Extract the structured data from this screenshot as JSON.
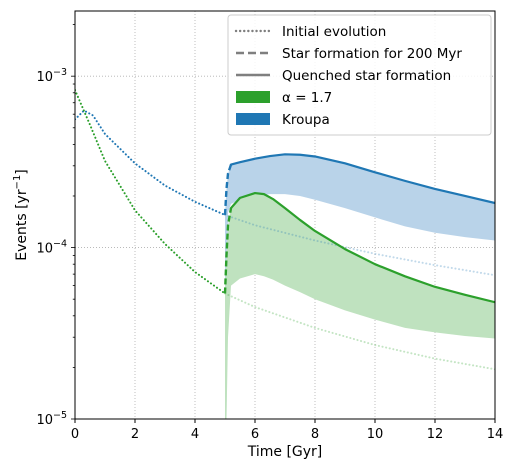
{
  "chart_data": {
    "type": "line",
    "title": "",
    "xlabel": "Time [Gyr]",
    "ylabel": "Events [yr",
    "ylabel_sup": "−1",
    "ylabel_end": "]",
    "xlim": [
      0,
      14
    ],
    "ylim": [
      1e-05,
      0.0024
    ],
    "yscale": "log",
    "grid": true,
    "x_ticks": [
      0,
      2,
      4,
      6,
      8,
      10,
      12,
      14
    ],
    "x_tick_labels": [
      "0",
      "2",
      "4",
      "6",
      "8",
      "10",
      "12",
      "14"
    ],
    "y_ticks": [
      1e-05,
      0.0001,
      0.001
    ],
    "y_tick_labels": [
      {
        "base": "10",
        "exp": "−5"
      },
      {
        "base": "10",
        "exp": "−4"
      },
      {
        "base": "10",
        "exp": "−3"
      }
    ],
    "legend_position": "top-right",
    "legend": [
      {
        "label": "Initial evolution",
        "style": "dotted",
        "color": "#7f7f7f"
      },
      {
        "label": "Star formation for 200 Myr",
        "style": "dashed",
        "color": "#7f7f7f"
      },
      {
        "label": "Quenched star formation",
        "style": "solid",
        "color": "#7f7f7f"
      },
      {
        "label": "α = 1.7",
        "style": "patch",
        "color": "#2ca02c"
      },
      {
        "label": "Kroupa",
        "style": "patch",
        "color": "#1f77b4"
      }
    ],
    "colors": {
      "blue": "#1f77b4",
      "green": "#2ca02c",
      "blue_fill": "#b9d3e9",
      "green_fill": "#bfe2bf"
    },
    "series": [
      {
        "model": "Kroupa",
        "style": "dotted",
        "stage": "initial",
        "x": [
          0,
          0.3,
          0.6,
          1,
          2,
          3,
          4,
          5
        ],
        "y": [
          0.00056,
          0.00063,
          0.00059,
          0.00046,
          0.00031,
          0.00023,
          0.000185,
          0.000155
        ]
      },
      {
        "model": "α = 1.7",
        "style": "dotted",
        "stage": "initial",
        "x": [
          0,
          0.5,
          1,
          2,
          3,
          4,
          5
        ],
        "y": [
          0.00083,
          0.00052,
          0.00032,
          0.000165,
          0.000105,
          7.2e-05,
          5.4e-05
        ]
      },
      {
        "model": "Kroupa",
        "style": "dotted-faint",
        "stage": "initial-continued",
        "x": [
          5,
          6,
          8,
          10,
          12,
          14
        ],
        "y": [
          0.000155,
          0.000135,
          0.00011,
          9.2e-05,
          7.9e-05,
          6.9e-05
        ]
      },
      {
        "model": "α = 1.7",
        "style": "dotted-faint",
        "stage": "initial-continued",
        "x": [
          5,
          6,
          8,
          10,
          12,
          14
        ],
        "y": [
          5.4e-05,
          4.5e-05,
          3.4e-05,
          2.7e-05,
          2.25e-05,
          1.95e-05
        ]
      },
      {
        "model": "Kroupa",
        "style": "dashed",
        "stage": "star-formation",
        "x": [
          5,
          5.05,
          5.1,
          5.2
        ],
        "y": [
          0.000155,
          0.00022,
          0.00027,
          0.000305
        ]
      },
      {
        "model": "α = 1.7",
        "style": "dashed",
        "stage": "star-formation",
        "x": [
          5,
          5.05,
          5.1,
          5.2
        ],
        "y": [
          5.4e-05,
          9e-05,
          0.000135,
          0.00017
        ]
      },
      {
        "model": "Kroupa",
        "style": "solid",
        "stage": "quenched",
        "x": [
          5.2,
          5.5,
          6,
          6.5,
          7,
          7.5,
          8,
          9,
          10,
          11,
          12,
          13,
          14
        ],
        "y": [
          0.000305,
          0.000315,
          0.00033,
          0.000342,
          0.00035,
          0.000348,
          0.00034,
          0.00031,
          0.000275,
          0.000245,
          0.00022,
          0.0002,
          0.000182
        ]
      },
      {
        "model": "α = 1.7",
        "style": "solid",
        "stage": "quenched",
        "x": [
          5.2,
          5.5,
          6,
          6.3,
          6.6,
          7,
          7.5,
          8,
          9,
          10,
          11,
          12,
          13,
          14
        ],
        "y": [
          0.00017,
          0.000195,
          0.000208,
          0.000205,
          0.000192,
          0.00017,
          0.000145,
          0.000125,
          9.8e-05,
          8e-05,
          6.8e-05,
          5.9e-05,
          5.3e-05,
          4.8e-05
        ]
      }
    ],
    "bands": [
      {
        "model": "Kroupa",
        "color": "#b9d3e9",
        "x": [
          5,
          5.05,
          5.1,
          5.2,
          5.5,
          6,
          6.5,
          7,
          7.5,
          8,
          9,
          10,
          11,
          12,
          13,
          14
        ],
        "upper": [
          0.000155,
          0.00022,
          0.00027,
          0.000305,
          0.000315,
          0.00033,
          0.000342,
          0.00035,
          0.000348,
          0.00034,
          0.00031,
          0.000275,
          0.000245,
          0.00022,
          0.0002,
          0.000182
        ],
        "lower": [
          1e-05,
          1e-05,
          0.00016,
          0.00018,
          0.00019,
          0.0002,
          0.000205,
          0.000205,
          0.0002,
          0.00019,
          0.00017,
          0.00015,
          0.000133,
          0.000122,
          0.000115,
          0.00011
        ]
      },
      {
        "model": "α = 1.7",
        "color": "#bfe2bf",
        "x": [
          5,
          5.05,
          5.1,
          5.2,
          5.5,
          6,
          6.3,
          6.6,
          7,
          7.5,
          8,
          9,
          10,
          11,
          12,
          13,
          14
        ],
        "upper": [
          5.4e-05,
          9e-05,
          0.000135,
          0.00017,
          0.000195,
          0.000208,
          0.000205,
          0.000192,
          0.00017,
          0.000145,
          0.000125,
          9.8e-05,
          8e-05,
          6.8e-05,
          5.9e-05,
          5.3e-05,
          4.8e-05
        ],
        "lower": [
          1e-05,
          1e-05,
          3e-05,
          6e-05,
          6.6e-05,
          7e-05,
          6.8e-05,
          6.5e-05,
          6e-05,
          5.5e-05,
          5e-05,
          4.3e-05,
          3.8e-05,
          3.4e-05,
          3.2e-05,
          3.05e-05,
          2.95e-05
        ]
      }
    ]
  }
}
